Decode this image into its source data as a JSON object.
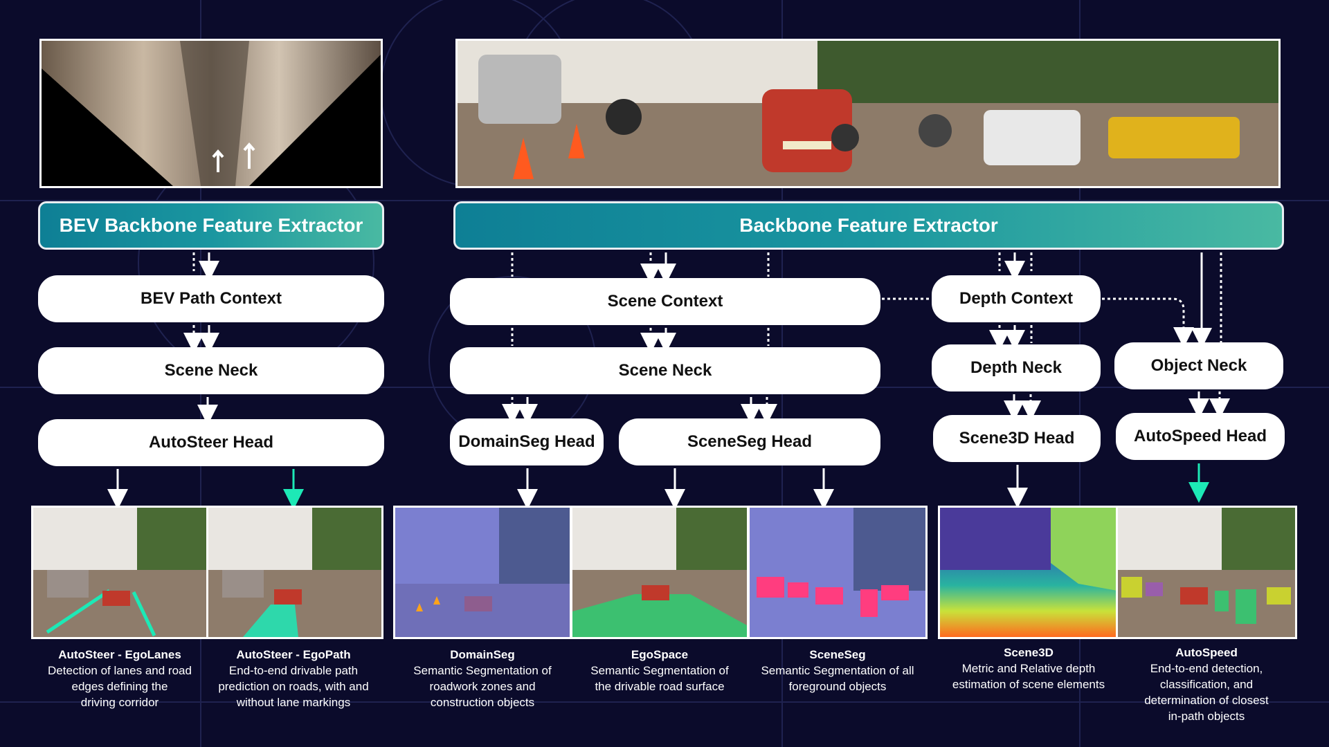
{
  "extractors": {
    "bev": "BEV Backbone Feature Extractor",
    "main": "Backbone Feature Extractor"
  },
  "nodes": {
    "bev_path_context": "BEV Path Context",
    "bev_scene_neck": "Scene Neck",
    "autosteer_head": "AutoSteer Head",
    "scene_context": "Scene Context",
    "scene_neck": "Scene Neck",
    "domainseg_head": "DomainSeg Head",
    "sceneseg_head": "SceneSeg Head",
    "depth_context": "Depth Context",
    "depth_neck": "Depth Neck",
    "scene3d_head": "Scene3D Head",
    "object_neck": "Object Neck",
    "autospeed_head": "AutoSpeed Head"
  },
  "outputs": [
    {
      "title": "AutoSteer - EgoLanes",
      "desc": [
        "Detection of lanes and road",
        "edges defining the",
        "driving corridor"
      ]
    },
    {
      "title": "AutoSteer - EgoPath",
      "desc": [
        "End-to-end drivable path",
        "prediction on roads, with and",
        "without lane markings"
      ]
    },
    {
      "title": "DomainSeg",
      "desc": [
        "Semantic Segmentation of",
        "roadwork zones and",
        "construction objects"
      ]
    },
    {
      "title": "EgoSpace",
      "desc": [
        "Semantic Segmentation of",
        "the drivable road surface"
      ]
    },
    {
      "title": "SceneSeg",
      "desc": [
        "Semantic Segmentation of all",
        "foreground objects"
      ]
    },
    {
      "title": "Scene3D",
      "desc": [
        "Metric and Relative depth",
        "estimation of scene elements"
      ]
    },
    {
      "title": "AutoSpeed",
      "desc": [
        "End-to-end detection,",
        "classification, and",
        "determination of closest",
        "in-path objects"
      ]
    }
  ],
  "colors": {
    "background": "#0b0b2b",
    "extractor_start": "#0e7f95",
    "extractor_end": "#49b9a2",
    "arrow": "#ffffff",
    "accent_arrow": "#1de9b6"
  }
}
